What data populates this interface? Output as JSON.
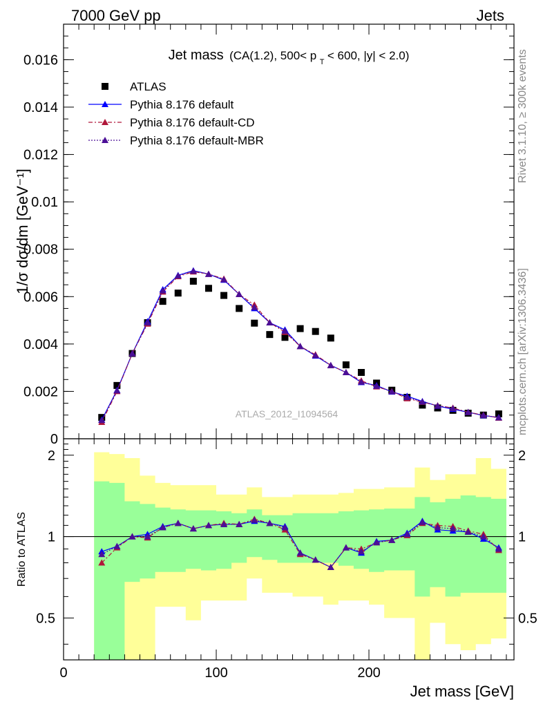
{
  "header": {
    "left": "7000 GeV pp",
    "right": "Jets"
  },
  "side_labels": {
    "rivet": "Rivet 3.1.10, ≥ 300k events",
    "mcplots": "mcplots.cern.ch [arXiv:1306.3436]"
  },
  "chart_data": [
    {
      "type": "scatter",
      "title": "Jet mass",
      "subtitle": "(CA(1.2), 500< p_T < 600, |y| < 2.0)",
      "subtitle_parts": {
        "pre": "(CA(1.2), 500< p",
        "sub": "T",
        "post": " < 600, |y| < 2.0)"
      },
      "ylabel": "1/σ dσ/dm [GeV⁻¹]",
      "xlabel": "",
      "watermark": "ATLAS_2012_I1094564",
      "xlim": [
        0,
        295
      ],
      "ylim": [
        0,
        0.0175
      ],
      "y_ticks": [
        0,
        0.002,
        0.004,
        0.006,
        0.008,
        0.01,
        0.012,
        0.014,
        0.016
      ],
      "y_tick_labels": [
        "0",
        "0.002",
        "0.004",
        "0.006",
        "0.008",
        "0.01",
        "0.012",
        "0.014",
        "0.016"
      ],
      "legend": [
        "ATLAS",
        "Pythia 8.176 default",
        "Pythia 8.176 default-CD",
        "Pythia 8.176 default-MBR"
      ],
      "x": [
        25,
        35,
        45,
        55,
        65,
        75,
        85,
        95,
        105,
        115,
        125,
        135,
        145,
        155,
        165,
        175,
        185,
        195,
        205,
        215,
        225,
        235,
        245,
        255,
        265,
        275,
        285
      ],
      "series": [
        {
          "name": "ATLAS",
          "color": "#000000",
          "values": [
            0.0009,
            0.00225,
            0.0036,
            0.0049,
            0.0058,
            0.00615,
            0.00665,
            0.00635,
            0.00605,
            0.0055,
            0.00488,
            0.0044,
            0.00428,
            0.00465,
            0.00453,
            0.00425,
            0.00312,
            0.0028,
            0.00235,
            0.00205,
            0.00175,
            0.00142,
            0.0013,
            0.0012,
            0.00108,
            0.001,
            0.00105
          ]
        },
        {
          "name": "Pythia 8.176 default",
          "color": "#0000ff",
          "values": [
            0.0008,
            0.00205,
            0.0036,
            0.00495,
            0.0063,
            0.0069,
            0.0071,
            0.00695,
            0.0067,
            0.0061,
            0.0055,
            0.0049,
            0.0046,
            0.0039,
            0.0035,
            0.0031,
            0.0028,
            0.00238,
            0.00225,
            0.00198,
            0.0018,
            0.00158,
            0.00138,
            0.00125,
            0.00112,
            0.00098,
            0.0009
          ]
        },
        {
          "name": "Pythia 8.176 default-CD",
          "color": "#b0163a",
          "values": [
            0.0007,
            0.002,
            0.0036,
            0.00485,
            0.0062,
            0.00685,
            0.00705,
            0.00695,
            0.00675,
            0.0061,
            0.00565,
            0.0049,
            0.0045,
            0.0039,
            0.00355,
            0.0031,
            0.0028,
            0.00245,
            0.0022,
            0.002,
            0.0017,
            0.00155,
            0.0014,
            0.0013,
            0.00112,
            0.001,
            0.00088
          ]
        },
        {
          "name": "Pythia 8.176 default-MBR",
          "color": "#4b0f96",
          "values": [
            0.00078,
            0.00203,
            0.0036,
            0.0049,
            0.00625,
            0.00688,
            0.00708,
            0.00695,
            0.00672,
            0.0061,
            0.00555,
            0.0049,
            0.00455,
            0.0039,
            0.00352,
            0.0031,
            0.0028,
            0.0024,
            0.00222,
            0.00199,
            0.00175,
            0.00156,
            0.00139,
            0.00128,
            0.00112,
            0.00099,
            0.00089
          ]
        }
      ]
    },
    {
      "type": "line",
      "ylabel": "Ratio to ATLAS",
      "xlabel": "Jet mass [GeV]",
      "xlim": [
        0,
        295
      ],
      "ylim": [
        0.35,
        2.3
      ],
      "y_ticks": [
        0.5,
        1,
        2
      ],
      "y_tick_labels": [
        "0.5",
        "1",
        "2"
      ],
      "x_ticks": [
        0,
        100,
        200
      ],
      "x_tick_labels": [
        "0",
        "100",
        "200"
      ],
      "reference_line": 1,
      "band_edges": [
        20,
        30,
        40,
        50,
        60,
        70,
        80,
        90,
        100,
        110,
        120,
        130,
        140,
        150,
        160,
        170,
        180,
        190,
        200,
        210,
        220,
        230,
        240,
        250,
        260,
        270,
        280,
        290
      ],
      "band_inner": {
        "color": "#99ff99",
        "low": [
          0.35,
          0.35,
          0.68,
          0.7,
          0.74,
          0.74,
          0.76,
          0.75,
          0.76,
          0.8,
          0.84,
          0.82,
          0.8,
          0.8,
          0.8,
          0.8,
          0.78,
          0.76,
          0.74,
          0.75,
          0.75,
          0.6,
          0.65,
          0.6,
          0.62,
          0.62,
          0.62
        ],
        "high": [
          1.6,
          1.58,
          1.35,
          1.32,
          1.28,
          1.26,
          1.25,
          1.25,
          1.24,
          1.22,
          1.26,
          1.2,
          1.2,
          1.22,
          1.22,
          1.22,
          1.24,
          1.25,
          1.26,
          1.27,
          1.27,
          1.4,
          1.34,
          1.38,
          1.42,
          1.4,
          1.38
        ]
      },
      "band_outer": {
        "color": "#ffff99",
        "low": [
          0.35,
          0.35,
          0.35,
          0.35,
          0.55,
          0.55,
          0.49,
          0.58,
          0.58,
          0.58,
          0.7,
          0.62,
          0.62,
          0.6,
          0.6,
          0.56,
          0.58,
          0.58,
          0.56,
          0.5,
          0.5,
          0.35,
          0.48,
          0.4,
          0.38,
          0.4,
          0.42
        ],
        "high": [
          2.05,
          2.02,
          1.95,
          1.68,
          1.58,
          1.55,
          1.55,
          1.55,
          1.43,
          1.43,
          1.52,
          1.4,
          1.4,
          1.43,
          1.43,
          1.43,
          1.45,
          1.5,
          1.5,
          1.52,
          1.52,
          1.8,
          1.62,
          1.7,
          1.7,
          1.95,
          1.78
        ]
      },
      "x": [
        25,
        35,
        45,
        55,
        65,
        75,
        85,
        95,
        105,
        115,
        125,
        135,
        145,
        155,
        165,
        175,
        185,
        195,
        205,
        215,
        225,
        235,
        245,
        255,
        265,
        275,
        285
      ],
      "series": [
        {
          "name": "Pythia 8.176 default",
          "color": "#0000ff",
          "values": [
            0.88,
            0.92,
            1.0,
            1.02,
            1.09,
            1.12,
            1.07,
            1.1,
            1.11,
            1.11,
            1.14,
            1.12,
            1.09,
            0.87,
            0.82,
            0.77,
            0.91,
            0.87,
            0.96,
            0.97,
            1.03,
            1.14,
            1.06,
            1.05,
            1.04,
            0.98,
            0.91
          ]
        },
        {
          "name": "Pythia 8.176 default-CD",
          "color": "#b0163a",
          "values": [
            0.8,
            0.91,
            1.0,
            0.99,
            1.08,
            1.12,
            1.07,
            1.1,
            1.12,
            1.11,
            1.16,
            1.12,
            1.06,
            0.86,
            0.82,
            0.77,
            0.91,
            0.9,
            0.95,
            0.97,
            1.01,
            1.12,
            1.1,
            1.09,
            1.05,
            1.02,
            0.89
          ]
        },
        {
          "name": "Pythia 8.176 default-MBR",
          "color": "#4b0f96",
          "values": [
            0.86,
            0.92,
            1.0,
            1.0,
            1.08,
            1.12,
            1.07,
            1.1,
            1.11,
            1.11,
            1.15,
            1.12,
            1.08,
            0.87,
            0.82,
            0.77,
            0.91,
            0.88,
            0.95,
            0.97,
            1.02,
            1.13,
            1.08,
            1.07,
            1.04,
            1.0,
            0.9
          ]
        }
      ]
    }
  ]
}
